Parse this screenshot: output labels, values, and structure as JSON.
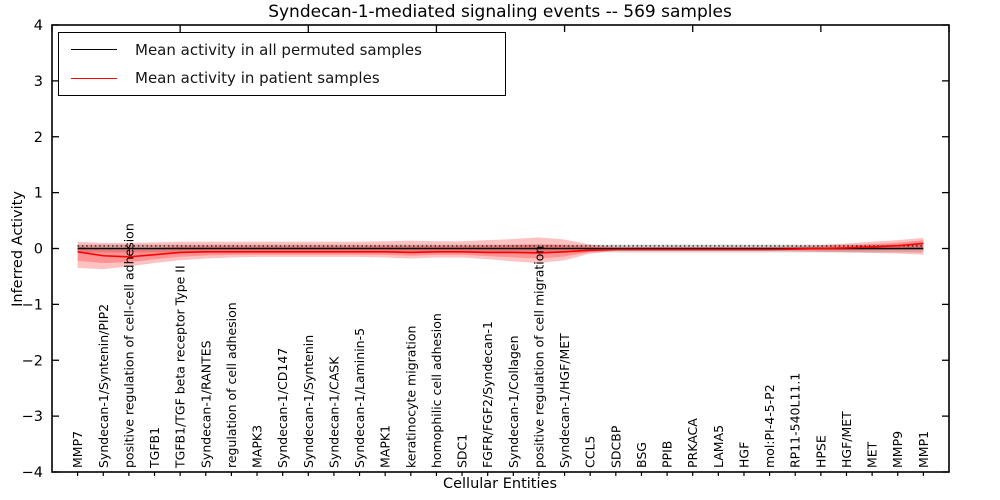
{
  "title": "Syndecan-1-mediated signaling events -- 569 samples",
  "legend": {
    "items": [
      {
        "label": "Mean activity in all permuted samples",
        "color": "#000000"
      },
      {
        "label": "Mean activity in patient samples",
        "color": "#ff0000"
      }
    ]
  },
  "axes": {
    "ylabel": "Inferred Activity",
    "xlabel": "Cellular Entities",
    "ytick_values": [
      4,
      3,
      2,
      1,
      0,
      -1,
      -2,
      -3,
      -4
    ],
    "ytick_labels": [
      "4",
      "3",
      "2",
      "1",
      "0",
      "−1",
      "−2",
      "−3",
      "−4"
    ],
    "ylim": [
      -4,
      4
    ],
    "x_range": [
      0,
      35
    ],
    "x_major_tick_step": 5
  },
  "chart_data": {
    "type": "line",
    "title": "Syndecan-1-mediated signaling events -- 569 samples",
    "xlabel": "Cellular Entities",
    "ylabel": "Inferred Activity",
    "ylim": [
      -4,
      4
    ],
    "legend_position": "upper left",
    "grid": false,
    "categories": [
      "MMP7",
      "Syndecan-1/Syntenin/PIP2",
      "positive regulation of cell-cell adhesion",
      "TGFB1",
      "TGFB1/TGF beta receptor Type II",
      "Syndecan-1/RANTES",
      "regulation of cell adhesion",
      "MAPK3",
      "Syndecan-1/CD147",
      "Syndecan-1/Syntenin",
      "Syndecan-1/CASK",
      "Syndecan-1/Laminin-5",
      "MAPK1",
      "keratinocyte migration",
      "homophilic cell adhesion",
      "SDC1",
      "FGFR/FGF2/Syndecan-1",
      "Syndecan-1/Collagen",
      "positive regulation of cell migration",
      "Syndecan-1/HGF/MET",
      "CCL5",
      "SDCBP",
      "BSG",
      "PPIB",
      "PRKACA",
      "LAMA5",
      "HGF",
      "mol:PI-4-5-P2",
      "RP11-540L11.1",
      "HPSE",
      "HGF/MET",
      "MET",
      "MMP9",
      "MMP1"
    ],
    "series": [
      {
        "name": "Mean activity in all permuted samples",
        "color": "#000000",
        "mean": 0.0,
        "std": 0.07,
        "std_line_offset": 0.045
      },
      {
        "name": "Mean activity in patient samples",
        "color": "#ff0000",
        "values": [
          -0.06,
          -0.13,
          -0.15,
          -0.11,
          -0.07,
          -0.06,
          -0.06,
          -0.06,
          -0.06,
          -0.06,
          -0.06,
          -0.06,
          -0.06,
          -0.07,
          -0.06,
          -0.06,
          -0.07,
          -0.07,
          -0.08,
          -0.06,
          -0.03,
          -0.02,
          -0.02,
          -0.02,
          -0.02,
          -0.02,
          -0.02,
          -0.02,
          -0.01,
          0.0,
          0.01,
          0.03,
          0.05,
          0.09
        ],
        "band_upper": [
          0.12,
          0.1,
          0.1,
          0.11,
          0.12,
          0.12,
          0.12,
          0.12,
          0.12,
          0.12,
          0.12,
          0.12,
          0.13,
          0.14,
          0.13,
          0.13,
          0.15,
          0.17,
          0.2,
          0.16,
          0.07,
          0.03,
          0.03,
          0.03,
          0.03,
          0.03,
          0.03,
          0.03,
          0.04,
          0.06,
          0.09,
          0.12,
          0.15,
          0.19
        ],
        "band_lower": [
          -0.35,
          -0.37,
          -0.32,
          -0.26,
          -0.21,
          -0.18,
          -0.16,
          -0.15,
          -0.15,
          -0.15,
          -0.15,
          -0.15,
          -0.16,
          -0.18,
          -0.16,
          -0.16,
          -0.19,
          -0.23,
          -0.26,
          -0.21,
          -0.09,
          -0.04,
          -0.04,
          -0.04,
          -0.04,
          -0.04,
          -0.04,
          -0.04,
          -0.05,
          -0.06,
          -0.07,
          -0.08,
          -0.09,
          -0.11
        ]
      }
    ],
    "style": {
      "patient_band_color": "#ff0000",
      "patient_band_alpha": 0.24,
      "inner_band_factor": 0.55,
      "permuted_band_color": "#888888",
      "permuted_band_alpha": 0.35
    }
  }
}
